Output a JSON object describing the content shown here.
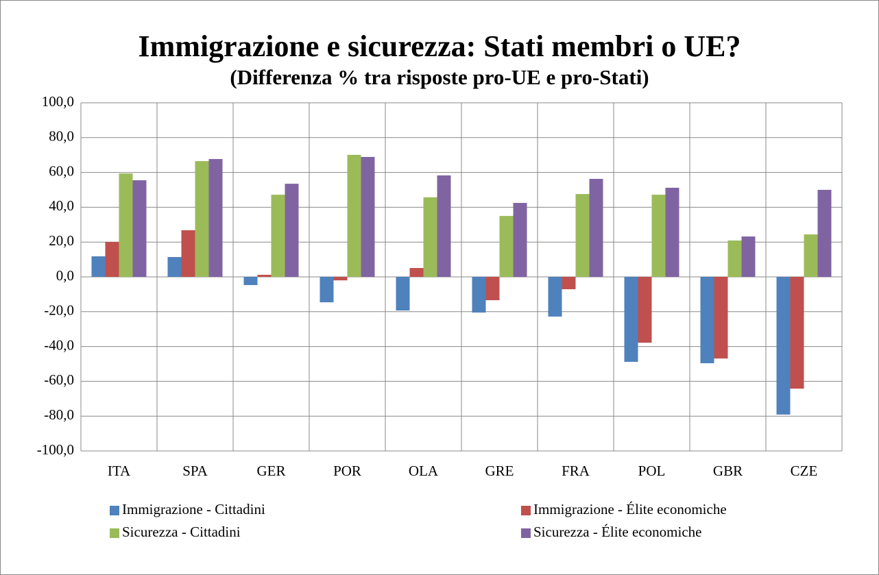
{
  "chart_data": {
    "type": "bar",
    "title": "Immigrazione e sicurezza: Stati membri o UE?",
    "subtitle": "(Differenza % tra risposte pro-UE e pro-Stati)",
    "categories": [
      "ITA",
      "SPA",
      "GER",
      "POR",
      "OLA",
      "GRE",
      "FRA",
      "POL",
      "GBR",
      "CZE"
    ],
    "series": [
      {
        "name": "Immigrazione - Cittadini",
        "color": "#4f81bd",
        "values": [
          11.8,
          11.4,
          -4.7,
          -14.6,
          -19.3,
          -20.5,
          -22.8,
          -48.8,
          -49.6,
          -79.1
        ]
      },
      {
        "name": "Immigrazione - Élite economiche",
        "color": "#c0504d",
        "values": [
          20.1,
          26.8,
          1.2,
          -2.0,
          5.1,
          -13.4,
          -7.1,
          -37.8,
          -46.9,
          -64.2
        ]
      },
      {
        "name": "Sicurezza - Cittadini",
        "color": "#9bbb59",
        "values": [
          59.4,
          66.5,
          47.2,
          70.1,
          45.7,
          35.0,
          47.6,
          47.2,
          20.9,
          24.4
        ]
      },
      {
        "name": "Sicurezza - Élite economiche",
        "color": "#8064a2",
        "values": [
          55.5,
          67.7,
          53.5,
          68.9,
          58.3,
          42.5,
          56.3,
          51.2,
          23.2,
          50.0
        ]
      }
    ],
    "ylim": [
      -100,
      100
    ],
    "yticks": [
      {
        "value": -100,
        "label": "-100,0"
      },
      {
        "value": -80,
        "label": "-80,0"
      },
      {
        "value": -60,
        "label": "-60,0"
      },
      {
        "value": -40,
        "label": "-40,0"
      },
      {
        "value": -20,
        "label": "-20,0"
      },
      {
        "value": 0,
        "label": "0,0"
      },
      {
        "value": 20,
        "label": "20,0"
      },
      {
        "value": 40,
        "label": "40,0"
      },
      {
        "value": 60,
        "label": "60,0"
      },
      {
        "value": 80,
        "label": "80,0"
      },
      {
        "value": 100,
        "label": "100,0"
      }
    ],
    "grid": true,
    "legend": "bottom"
  }
}
